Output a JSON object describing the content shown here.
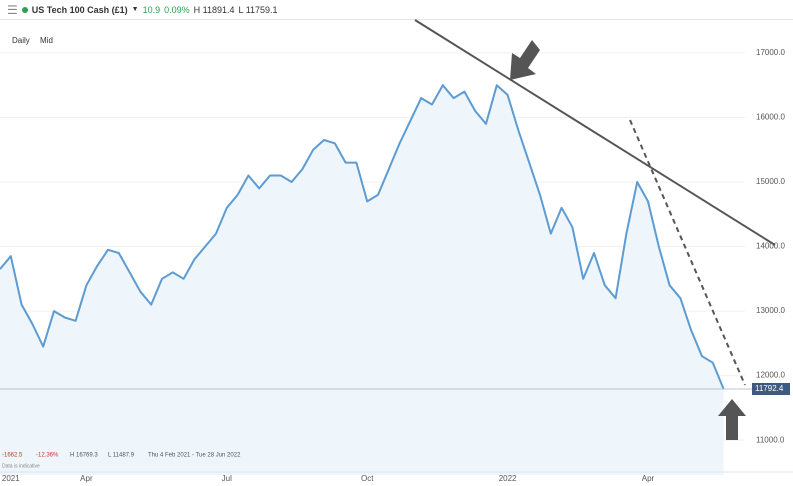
{
  "header": {
    "instrument": "US Tech 100 Cash (£1)",
    "change": "10.9",
    "change_pct": "0.09%",
    "high": "H 11891.4",
    "low": "L 11759.1"
  },
  "chart_data": {
    "type": "line",
    "timeframe": "Daily",
    "price_type": "Mid",
    "categories": [
      null,
      "2021",
      null,
      null,
      null,
      null,
      null,
      null,
      "Apr",
      null,
      null,
      null,
      null,
      null,
      null,
      null,
      null,
      null,
      null,
      null,
      null,
      "Jul",
      null,
      null,
      null,
      null,
      null,
      null,
      null,
      null,
      null,
      null,
      null,
      null,
      "Oct",
      null,
      null,
      null,
      null,
      null,
      null,
      null,
      null,
      null,
      null,
      null,
      null,
      "2022",
      null,
      null,
      null,
      null,
      null,
      null,
      null,
      null,
      null,
      null,
      null,
      null,
      "Apr",
      null,
      null,
      null,
      null,
      null,
      null,
      null
    ],
    "series": [
      {
        "name": "US Tech 100 Cash",
        "color": "#5d9bd3",
        "values": [
          13650,
          13850,
          13100,
          12800,
          12450,
          13000,
          12900,
          12850,
          13400,
          13700,
          13950,
          13900,
          13600,
          13300,
          13100,
          13500,
          13600,
          13500,
          13800,
          14000,
          14200,
          14600,
          14800,
          15100,
          14900,
          15100,
          15100,
          15000,
          15200,
          15500,
          15650,
          15600,
          15300,
          15300,
          14700,
          14800,
          15200,
          15600,
          15950,
          16300,
          16200,
          16500,
          16300,
          16400,
          16100,
          15900,
          16500,
          16350,
          15800,
          15300,
          14800,
          14200,
          14600,
          14300,
          13500,
          13900,
          13400,
          13200,
          14200,
          15000,
          14700,
          14000,
          13400,
          13200,
          12700,
          12300,
          12200,
          11792.4
        ]
      }
    ],
    "ylim": [
      10460,
      17510
    ],
    "yticks": [
      {
        "value": 11000,
        "label": "11000.0"
      },
      {
        "value": 12000,
        "label": "12000.0"
      },
      {
        "value": 13000,
        "label": "13000.0"
      },
      {
        "value": 14000,
        "label": "14000.0"
      },
      {
        "value": 15000,
        "label": "15000.0"
      },
      {
        "value": 16000,
        "label": "16000.0"
      },
      {
        "value": 17000,
        "label": "17000.0"
      }
    ],
    "last_price": {
      "value": 11792.4,
      "label": "11792.4"
    },
    "info": {
      "change": "-1662.5",
      "change_pct": "-12.36%",
      "high": "H 16769.3",
      "low": "L 11487.9",
      "range": "Thu 4 Feb 2021 - Tue 28 Jun 2022",
      "note": "Data is indicative"
    }
  }
}
